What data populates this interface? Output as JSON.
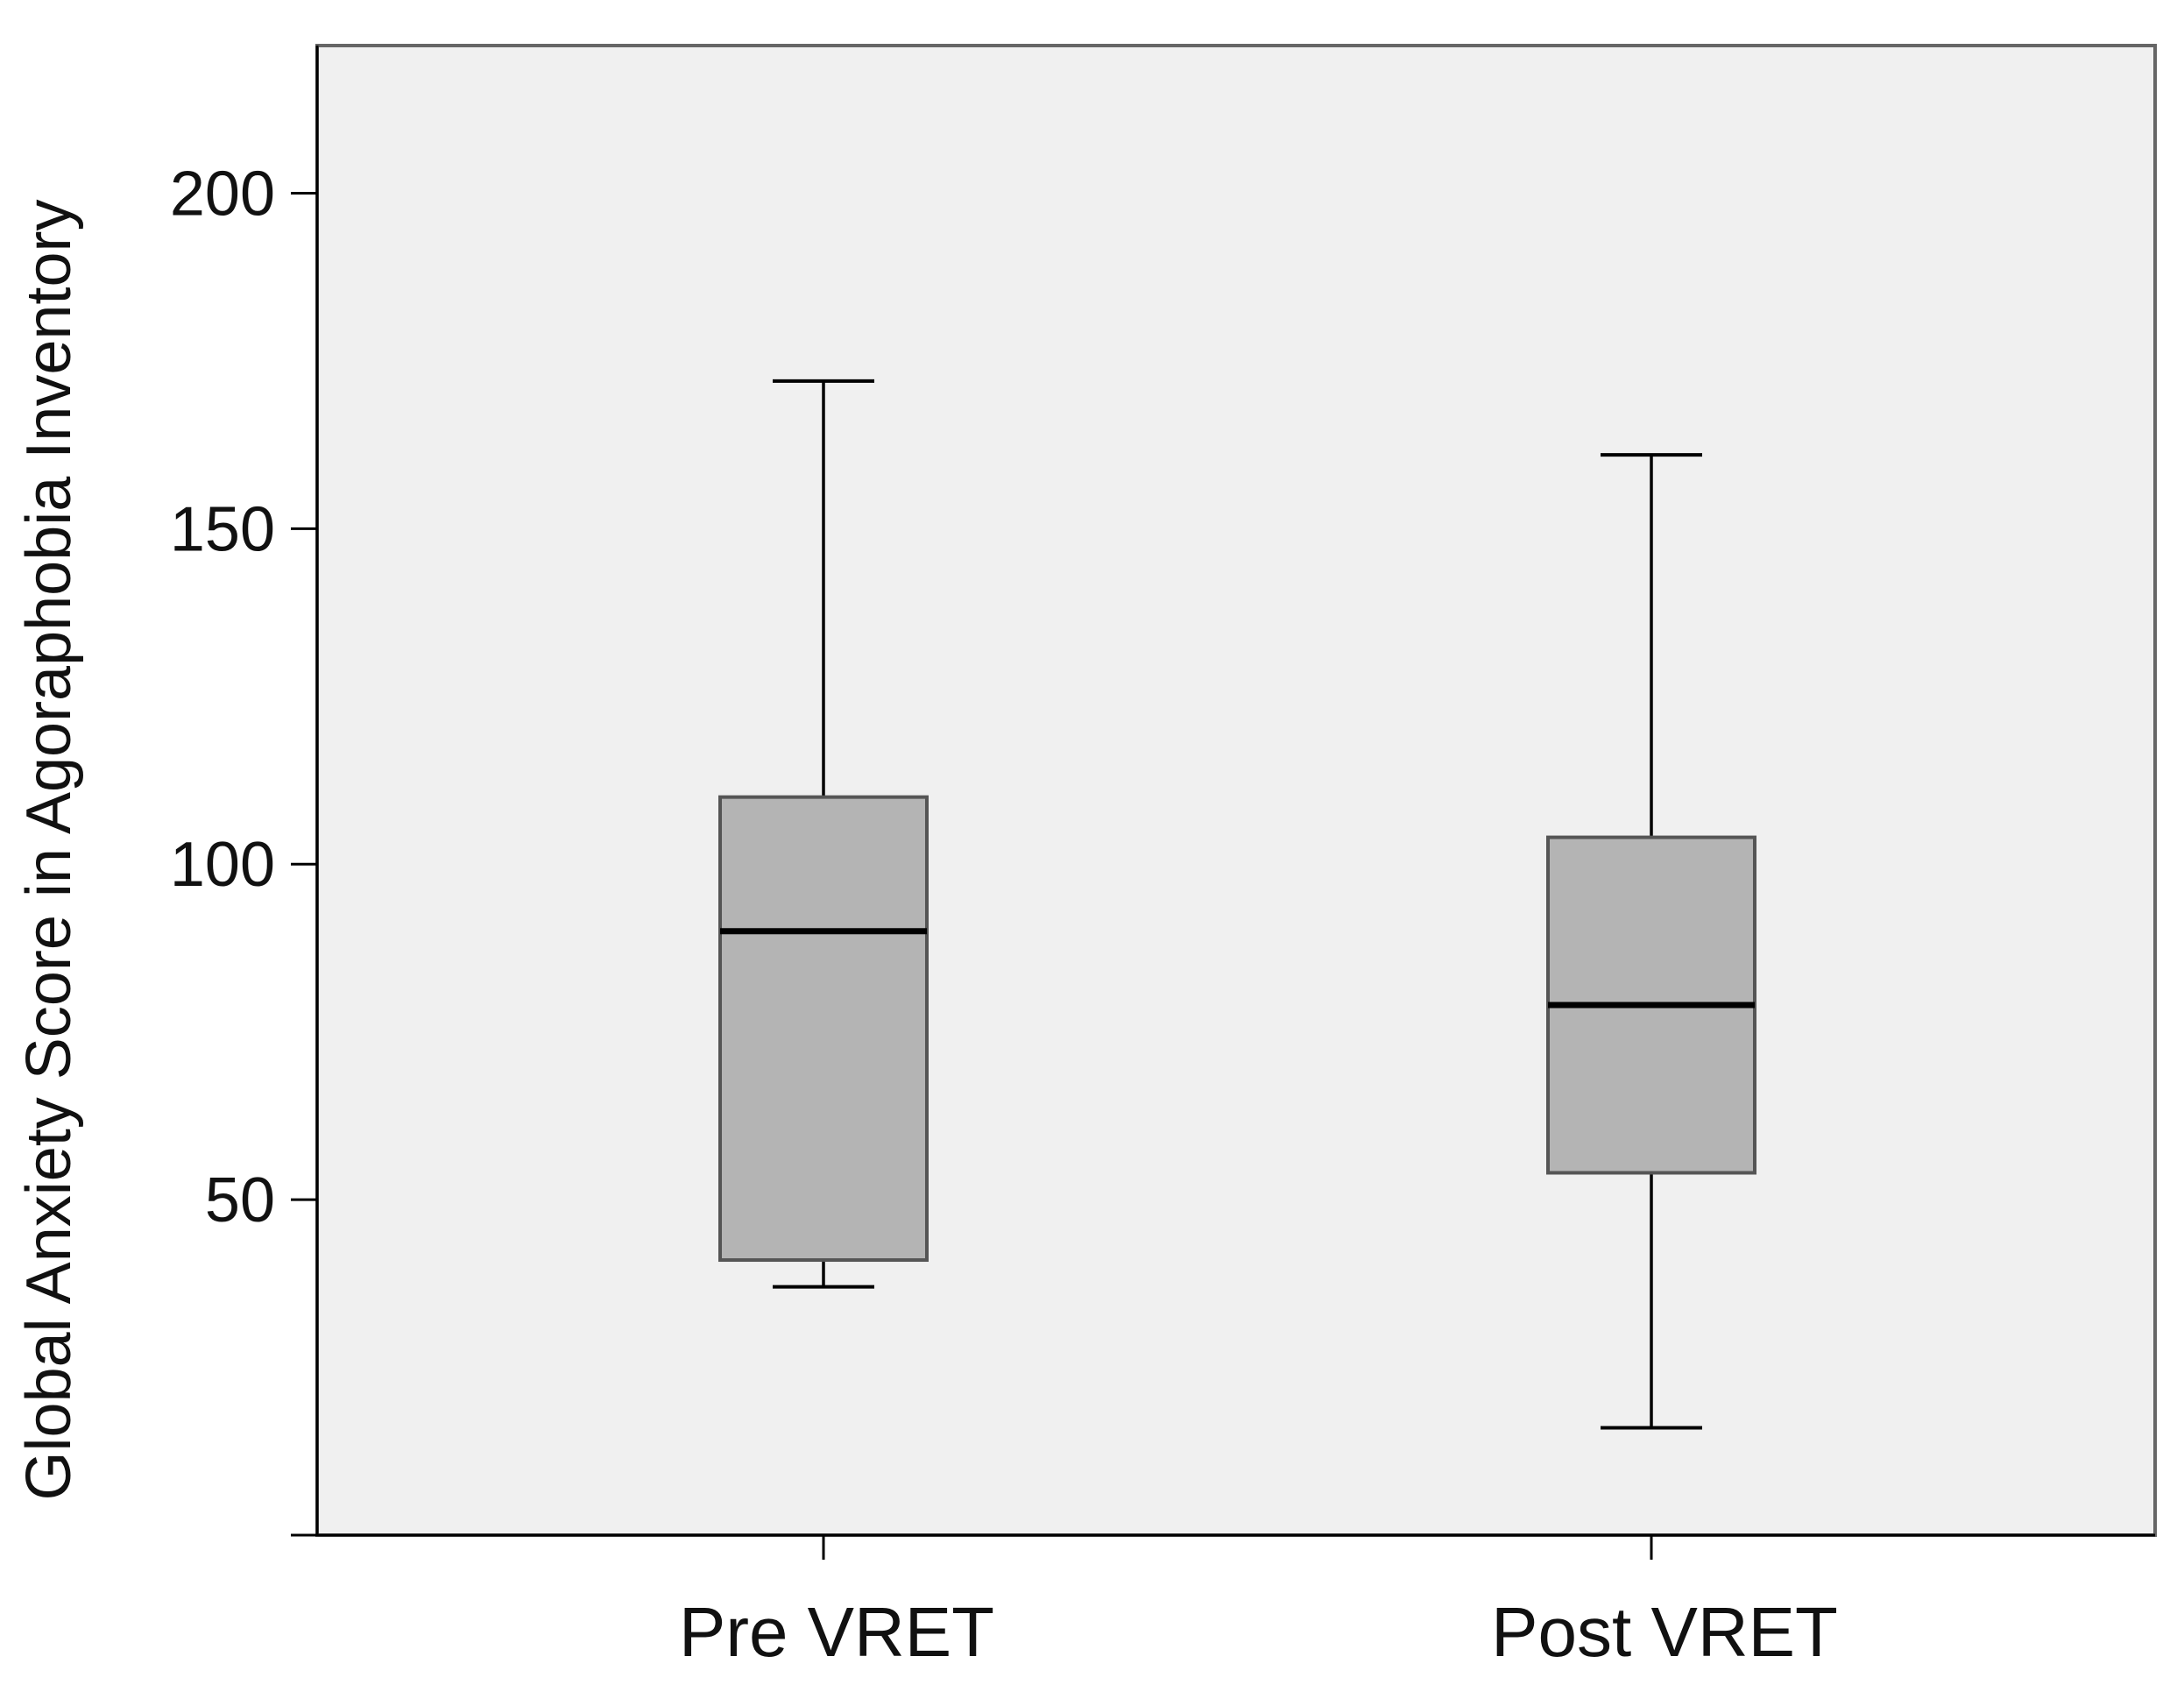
{
  "chart_data": {
    "type": "boxplot",
    "title": "",
    "xlabel": "",
    "ylabel": "Global Anxiety Score in Agoraphobia Inventory",
    "ylim": [
      0,
      222
    ],
    "yticks": [
      50,
      100,
      150,
      200
    ],
    "categories": [
      "Pre VRET",
      "Post VRET"
    ],
    "boxes": [
      {
        "category": "Pre VRET",
        "whisker_low": 37,
        "q1": 41,
        "median": 90,
        "q3": 110,
        "whisker_high": 172
      },
      {
        "category": "Post VRET",
        "whisker_low": 16,
        "q1": 54,
        "median": 79,
        "q3": 104,
        "whisker_high": 161
      }
    ],
    "grid": false,
    "colors": {
      "plot_background": "#f0f0f0",
      "box_fill": "#b4b4b4",
      "box_edge": "#555555",
      "line": "#000000",
      "frame": "#666666"
    }
  }
}
